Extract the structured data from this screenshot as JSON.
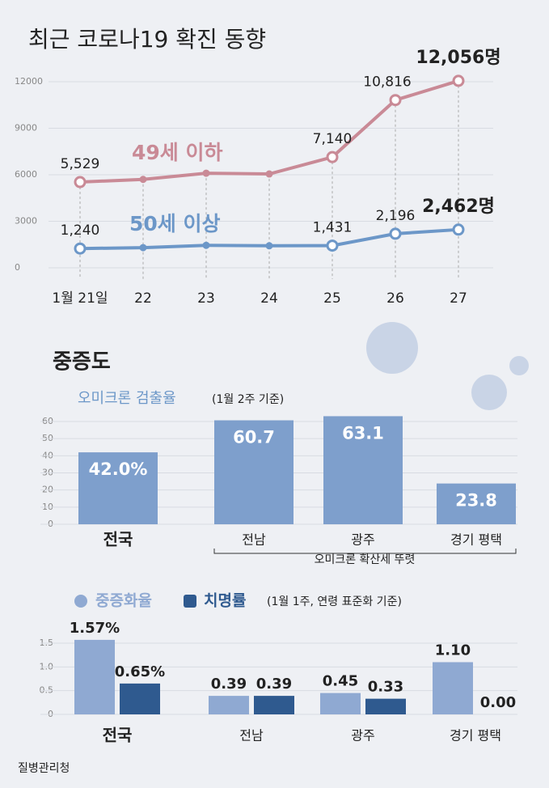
{
  "chart_data": [
    {
      "type": "line",
      "title": "최근 코로나19 확진 동향",
      "categories": [
        "1월 21일",
        "22",
        "23",
        "24",
        "25",
        "26",
        "27"
      ],
      "series": [
        {
          "name": "49세 이하",
          "color": "#c98a96",
          "values": [
            5529,
            5700,
            6100,
            6050,
            7140,
            10816,
            12056
          ],
          "value_labels": [
            "5,529",
            null,
            null,
            null,
            "7,140",
            "10,816",
            "12,056명"
          ]
        },
        {
          "name": "50세 이상",
          "color": "#6c97c8",
          "values": [
            1240,
            1300,
            1450,
            1420,
            1431,
            2196,
            2462
          ],
          "value_labels": [
            "1,240",
            null,
            null,
            null,
            "1,431",
            "2,196",
            "2,462명"
          ]
        }
      ],
      "ylim": [
        0,
        12000
      ],
      "yticks": [
        0,
        3000,
        6000,
        9000,
        12000
      ],
      "grid": true
    },
    {
      "type": "bar",
      "title": "오미크론 검출율",
      "subtitle": "(1월 2주 기준)",
      "categories": [
        "전국",
        "전남",
        "광주",
        "경기 평택"
      ],
      "values": [
        42.0,
        60.7,
        63.1,
        23.8
      ],
      "value_labels": [
        "42.0%",
        "60.7",
        "63.1",
        "23.8"
      ],
      "color": "#7e9fcc",
      "ylim": [
        0,
        60
      ],
      "yticks": [
        0,
        10,
        20,
        30,
        40,
        50,
        60
      ],
      "grid": true,
      "annotation": "오미크론 확산세 뚜렷"
    },
    {
      "type": "grouped",
      "subtitle": "(1월 1주, 연령 표준화 기준)",
      "categories": [
        "전국",
        "전남",
        "광주",
        "경기 평택"
      ],
      "series": [
        {
          "name": "중증화율",
          "color": "#8fa9d2",
          "values": [
            1.57,
            0.39,
            0.45,
            1.1
          ],
          "value_labels": [
            "1.57%",
            "0.39",
            "0.45",
            "1.10"
          ]
        },
        {
          "name": "치명률",
          "color": "#2f5a8f",
          "values": [
            0.65,
            0.39,
            0.33,
            0.0
          ],
          "value_labels": [
            "0.65%",
            "0.39",
            "0.33",
            "0.00"
          ]
        }
      ],
      "ylim": [
        0,
        1.5
      ],
      "yticks": [
        0,
        0.5,
        {
          "value": 1,
          "label": "1.0"
        },
        1.5
      ],
      "grid": true
    }
  ],
  "section_title": "중증도",
  "source": "질병관리청"
}
